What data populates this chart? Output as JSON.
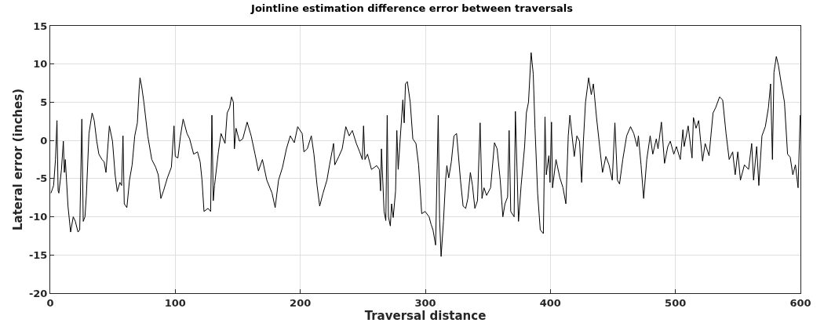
{
  "chart_data": {
    "type": "line",
    "title": "Jointline estimation difference error between traversals",
    "xlabel": "Traversal distance",
    "ylabel": "Lateral error (inches)",
    "xlim": [
      0,
      600
    ],
    "ylim": [
      -20,
      15
    ],
    "xticks": [
      0,
      100,
      200,
      300,
      400,
      500,
      600
    ],
    "yticks": [
      -20,
      -15,
      -10,
      -5,
      0,
      5,
      10,
      15
    ],
    "grid": true,
    "marker": "none",
    "line_style": "solid",
    "series": [
      {
        "color": "#000000",
        "x": [
          0.6,
          2.7,
          4.2,
          5.4,
          6.3,
          6.9,
          9.0,
          10.5,
          11.3,
          12.1,
          14.2,
          16.3,
          18.4,
          20.1,
          22.2,
          23.6,
          25.3,
          26.4,
          27.8,
          28.9,
          31.0,
          33.5,
          35.2,
          37.2,
          38.9,
          41.4,
          43.1,
          44.6,
          47.3,
          49.8,
          51.9,
          53.6,
          55.7,
          57.1,
          58.2,
          59.2,
          61.3,
          63.4,
          65.5,
          67.6,
          69.7,
          71.1,
          71.8,
          73.2,
          74.9,
          78.0,
          81.2,
          84.3,
          86.4,
          88.5,
          90.6,
          93.7,
          96.9,
          99.0,
          100.0,
          102.1,
          104.2,
          106.3,
          109.4,
          111.5,
          114.7,
          117.8,
          119.9,
          121.4,
          123.0,
          126.2,
          128.3,
          129.3,
          130.4,
          131.4,
          134.5,
          136.6,
          139.8,
          141.5,
          143.5,
          145.0,
          146.5,
          147.3,
          148.6,
          151.3,
          154.0,
          157.5,
          160.7,
          163.8,
          166.5,
          169.7,
          173.2,
          177.4,
          179.9,
          182.6,
          185.8,
          188.9,
          192.0,
          195.2,
          197.9,
          201.5,
          202.9,
          205.6,
          208.8,
          210.9,
          213.4,
          215.5,
          218.2,
          221.3,
          223.4,
          226.6,
          227.6,
          230.8,
          233.5,
          236.4,
          239.1,
          241.6,
          244.8,
          247.5,
          249.6,
          250.6,
          251.7,
          253.8,
          256.9,
          261.1,
          263.2,
          264.2,
          264.9,
          267.0,
          268.4,
          269.5,
          270.5,
          272.0,
          273.0,
          274.3,
          276.2,
          277.2,
          278.3,
          279.9,
          282.0,
          283.1,
          284.1,
          285.6,
          287.9,
          290.0,
          292.5,
          294.6,
          297.1,
          299.8,
          303.0,
          304.6,
          306.1,
          308.2,
          310.3,
          311.4,
          312.6,
          314.5,
          316.2,
          317.2,
          318.7,
          320.8,
          322.9,
          325.0,
          328.1,
          330.2,
          332.3,
          334.0,
          336.0,
          337.7,
          339.6,
          341.7,
          343.8,
          345.3,
          346.9,
          349.0,
          352.2,
          355.3,
          357.4,
          359.9,
          362.0,
          363.7,
          365.8,
          367.0,
          368.3,
          371.0,
          372.0,
          374.5,
          376.6,
          379.4,
          380.8,
          382.5,
          384.6,
          386.3,
          387.7,
          389.8,
          391.9,
          394.4,
          395.7,
          396.7,
          398.8,
          399.7,
          400.9,
          401.7,
          404.5,
          407.6,
          410.1,
          412.4,
          414.3,
          415.6,
          419.1,
          421.2,
          423.3,
          425.0,
          426.4,
          428.1,
          430.6,
          432.7,
          434.4,
          436.9,
          439.4,
          441.7,
          444.4,
          446.9,
          449.5,
          451.6,
          453.6,
          455.3,
          457.9,
          461.0,
          464.1,
          466.7,
          469.4,
          470.4,
          472.5,
          474.6,
          477.1,
          479.8,
          481.9,
          484.7,
          486.1,
          488.8,
          491.3,
          493.9,
          495.9,
          498.7,
          500.8,
          503.9,
          506.0,
          507.0,
          510.2,
          513.3,
          514.4,
          516.5,
          518.6,
          521.7,
          523.8,
          526.9,
          530.1,
          532.2,
          535.3,
          537.8,
          540.5,
          543.0,
          545.8,
          547.8,
          549.9,
          552.0,
          555.2,
          558.5,
          561.0,
          562.5,
          565.0,
          566.7,
          569.2,
          571.9,
          574.4,
          576.1,
          577.6,
          578.8,
          580.7,
          582.4,
          584.5,
          587.2,
          589.7,
          591.8,
          593.9,
          596.0,
          598.1,
          599.8
        ],
        "values": [
          -6.9,
          -5.9,
          -2.5,
          2.6,
          -6.6,
          -6.9,
          -3.8,
          -0.1,
          -4.2,
          -2.5,
          -8.6,
          -12.0,
          -10.0,
          -10.6,
          -12.0,
          -11.7,
          2.8,
          -10.6,
          -10.0,
          -7.2,
          0.9,
          3.6,
          2.6,
          -0.1,
          -1.8,
          -2.5,
          -2.8,
          -4.2,
          1.9,
          -0.1,
          -4.5,
          -6.7,
          -5.5,
          -5.9,
          0.6,
          -8.3,
          -8.8,
          -5.2,
          -3.2,
          0.6,
          2.3,
          6.7,
          8.2,
          7.0,
          5.0,
          0.6,
          -2.5,
          -3.5,
          -4.5,
          -7.6,
          -6.6,
          -4.9,
          -3.5,
          1.9,
          -2.1,
          -2.3,
          0.6,
          2.8,
          0.9,
          0.2,
          -1.8,
          -1.5,
          -2.8,
          -5.2,
          -9.3,
          -8.9,
          -9.3,
          3.3,
          -7.9,
          -5.9,
          -1.5,
          0.9,
          -0.4,
          3.6,
          4.3,
          5.7,
          5.0,
          -1.1,
          1.6,
          -0.1,
          0.2,
          2.4,
          0.6,
          -1.8,
          -4.0,
          -2.5,
          -5.2,
          -6.9,
          -8.8,
          -5.2,
          -3.5,
          -1.1,
          0.6,
          -0.3,
          1.8,
          0.9,
          -1.5,
          -1.1,
          0.6,
          -1.8,
          -5.9,
          -8.6,
          -6.9,
          -5.2,
          -3.2,
          -0.4,
          -3.2,
          -2.1,
          -1.1,
          1.8,
          0.6,
          1.3,
          -0.4,
          -1.5,
          -2.5,
          1.9,
          -2.5,
          -1.8,
          -3.8,
          -3.3,
          -3.8,
          -6.6,
          -1.1,
          -9.3,
          -10.5,
          3.3,
          -10.0,
          -11.2,
          -8.3,
          -10.1,
          -6.6,
          1.3,
          -3.8,
          0.2,
          5.3,
          2.3,
          7.4,
          7.7,
          5.0,
          0.2,
          -0.4,
          -3.2,
          -9.6,
          -9.3,
          -10.0,
          -11.0,
          -11.7,
          -13.7,
          3.3,
          -10.3,
          -15.2,
          -10.6,
          -5.2,
          -3.3,
          -4.9,
          -2.8,
          0.6,
          0.9,
          -5.2,
          -8.6,
          -8.9,
          -7.6,
          -4.2,
          -5.9,
          -8.9,
          -7.9,
          2.3,
          -7.6,
          -6.2,
          -7.2,
          -6.2,
          -0.3,
          -1.1,
          -5.2,
          -10.0,
          -8.3,
          -7.4,
          1.3,
          -9.3,
          -10.0,
          3.8,
          -10.6,
          -5.9,
          -0.8,
          3.6,
          5.0,
          11.5,
          8.7,
          1.6,
          -6.9,
          -11.7,
          -12.2,
          3.1,
          -4.5,
          -2.0,
          -5.5,
          2.4,
          -6.2,
          -2.5,
          -4.9,
          -6.2,
          -8.3,
          0.6,
          3.3,
          -2.1,
          0.6,
          -0.1,
          -5.5,
          -0.1,
          5.0,
          8.2,
          6.0,
          7.4,
          3.0,
          -0.8,
          -4.2,
          -2.1,
          -3.2,
          -5.2,
          2.3,
          -5.2,
          -5.7,
          -2.5,
          0.6,
          1.8,
          0.9,
          -0.8,
          0.6,
          -3.2,
          -7.6,
          -2.5,
          0.6,
          -1.8,
          0.2,
          -1.1,
          2.4,
          -3.0,
          -0.8,
          -0.1,
          -1.8,
          -0.8,
          -2.5,
          1.4,
          -0.8,
          1.9,
          -2.3,
          3.0,
          1.6,
          2.6,
          -2.7,
          -0.4,
          -2.0,
          3.6,
          4.3,
          5.7,
          5.3,
          0.9,
          -2.5,
          -1.5,
          -4.5,
          -1.5,
          -5.2,
          -3.2,
          -3.8,
          -0.4,
          -5.2,
          -0.8,
          -5.9,
          0.6,
          1.8,
          4.3,
          7.4,
          -2.5,
          8.9,
          11.0,
          9.8,
          7.6,
          5.0,
          -1.8,
          -2.2,
          -4.5,
          -3.2,
          -6.2,
          3.3
        ]
      }
    ]
  }
}
